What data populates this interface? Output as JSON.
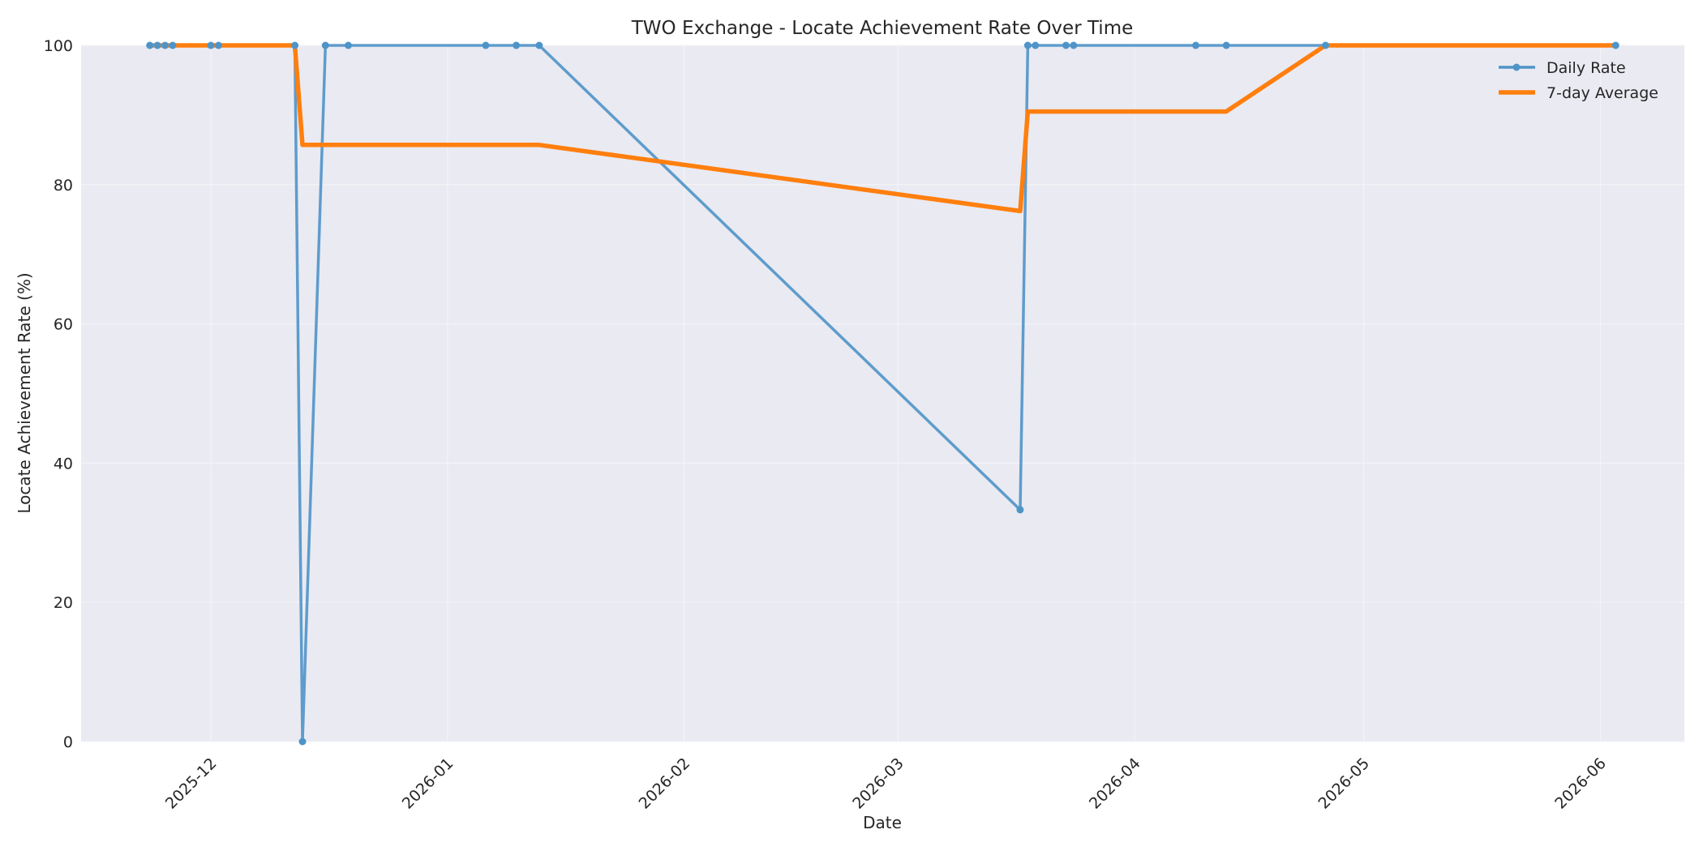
{
  "chart_data": {
    "type": "line",
    "title": "TWO Exchange - Locate Achievement Rate Over Time",
    "xlabel": "Date",
    "ylabel": "Locate Achievement Rate (%)",
    "xlim": [
      "2025-11-14",
      "2026-06-12"
    ],
    "ylim": [
      0,
      100
    ],
    "x_ticks": [
      "2025-12",
      "2026-01",
      "2026-02",
      "2026-03",
      "2026-04",
      "2026-05",
      "2026-06"
    ],
    "y_ticks": [
      0,
      20,
      40,
      60,
      80,
      100
    ],
    "grid": true,
    "legend_position": "top-right",
    "series": [
      {
        "name": "Daily Rate",
        "color": "#4f94c8",
        "marker": "circle",
        "points": [
          [
            "2025-11-23",
            100
          ],
          [
            "2025-11-24",
            100
          ],
          [
            "2025-11-25",
            100
          ],
          [
            "2025-11-26",
            100
          ],
          [
            "2025-12-01",
            100
          ],
          [
            "2025-12-02",
            100
          ],
          [
            "2025-12-12",
            100
          ],
          [
            "2025-12-13",
            0
          ],
          [
            "2025-12-16",
            100
          ],
          [
            "2025-12-19",
            100
          ],
          [
            "2026-01-06",
            100
          ],
          [
            "2026-01-10",
            100
          ],
          [
            "2026-01-13",
            100
          ],
          [
            "2026-03-17",
            33.3
          ],
          [
            "2026-03-18",
            100
          ],
          [
            "2026-03-19",
            100
          ],
          [
            "2026-03-23",
            100
          ],
          [
            "2026-03-24",
            100
          ],
          [
            "2026-04-09",
            100
          ],
          [
            "2026-04-13",
            100
          ],
          [
            "2026-04-26",
            100
          ],
          [
            "2026-06-03",
            100
          ]
        ]
      },
      {
        "name": "7-day Average",
        "color": "#ff7f0e",
        "marker": "none",
        "points": [
          [
            "2025-11-23",
            100
          ],
          [
            "2025-12-12",
            100
          ],
          [
            "2025-12-13",
            85.7
          ],
          [
            "2026-01-13",
            85.7
          ],
          [
            "2026-03-17",
            76.2
          ],
          [
            "2026-03-18",
            90.5
          ],
          [
            "2026-04-13",
            90.5
          ],
          [
            "2026-04-26",
            100
          ],
          [
            "2026-06-03",
            100
          ]
        ]
      }
    ]
  }
}
